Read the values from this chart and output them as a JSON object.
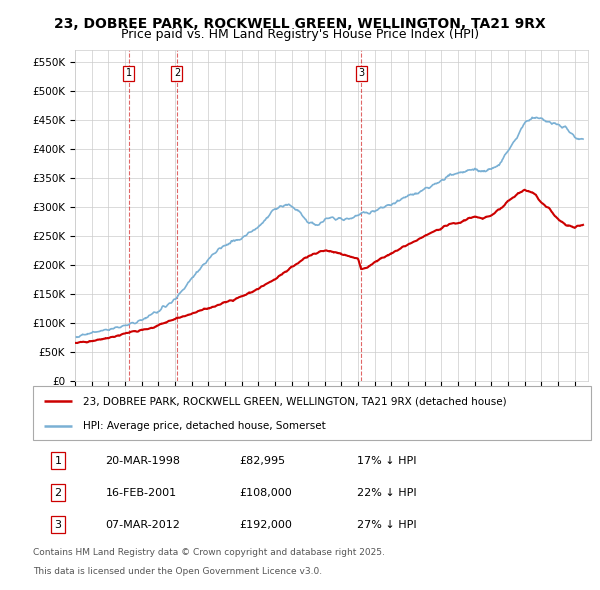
{
  "title": "23, DOBREE PARK, ROCKWELL GREEN, WELLINGTON, TA21 9RX",
  "subtitle": "Price paid vs. HM Land Registry's House Price Index (HPI)",
  "ylabel_ticks": [
    "£0",
    "£50K",
    "£100K",
    "£150K",
    "£200K",
    "£250K",
    "£300K",
    "£350K",
    "£400K",
    "£450K",
    "£500K",
    "£550K"
  ],
  "ytick_values": [
    0,
    50000,
    100000,
    150000,
    200000,
    250000,
    300000,
    350000,
    400000,
    450000,
    500000,
    550000
  ],
  "ylim": [
    0,
    570000
  ],
  "xlim_start": 1995.0,
  "xlim_end": 2025.8,
  "sale_dates": [
    1998.22,
    2001.12,
    2012.18
  ],
  "sale_prices": [
    82995,
    108000,
    192000
  ],
  "sale_labels": [
    "1",
    "2",
    "3"
  ],
  "legend_label_red": "23, DOBREE PARK, ROCKWELL GREEN, WELLINGTON, TA21 9RX (detached house)",
  "legend_label_blue": "HPI: Average price, detached house, Somerset",
  "footnote1": "Contains HM Land Registry data © Crown copyright and database right 2025.",
  "footnote2": "This data is licensed under the Open Government Licence v3.0.",
  "red_color": "#cc0000",
  "blue_color": "#7ab0d4",
  "background_color": "#ffffff",
  "grid_color": "#cccccc",
  "table_rows": [
    [
      "1",
      "20-MAR-1998",
      "£82,995",
      "17% ↓ HPI"
    ],
    [
      "2",
      "16-FEB-2001",
      "£108,000",
      "22% ↓ HPI"
    ],
    [
      "3",
      "07-MAR-2012",
      "£192,000",
      "27% ↓ HPI"
    ]
  ]
}
